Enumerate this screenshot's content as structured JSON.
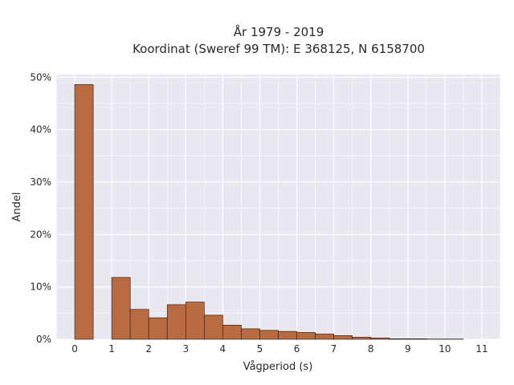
{
  "chart_data": {
    "type": "bar",
    "title": "År 1979 - 2019",
    "subtitle": "Koordinat (Sweref 99 TM): E 368125, N 6158700",
    "xlabel": "Vågperiod (s)",
    "ylabel": "Andel",
    "xlim": [
      -0.5,
      11.5
    ],
    "ylim": [
      0,
      50.5
    ],
    "x_ticks": [
      0,
      1,
      2,
      3,
      4,
      5,
      6,
      7,
      8,
      9,
      10,
      11
    ],
    "y_ticks": [
      0,
      10,
      20,
      30,
      40,
      50
    ],
    "y_tick_labels": [
      "0%",
      "10%",
      "20%",
      "30%",
      "40%",
      "50%"
    ],
    "bin_width": 0.5,
    "bins": [
      {
        "start": 0.0,
        "value": 48.6
      },
      {
        "start": 1.0,
        "value": 11.8
      },
      {
        "start": 1.5,
        "value": 5.7
      },
      {
        "start": 2.0,
        "value": 4.1
      },
      {
        "start": 2.5,
        "value": 6.6
      },
      {
        "start": 3.0,
        "value": 7.1
      },
      {
        "start": 3.5,
        "value": 4.6
      },
      {
        "start": 4.0,
        "value": 2.7
      },
      {
        "start": 4.5,
        "value": 2.0
      },
      {
        "start": 5.0,
        "value": 1.7
      },
      {
        "start": 5.5,
        "value": 1.5
      },
      {
        "start": 6.0,
        "value": 1.3
      },
      {
        "start": 6.5,
        "value": 1.0
      },
      {
        "start": 7.0,
        "value": 0.7
      },
      {
        "start": 7.5,
        "value": 0.4
      },
      {
        "start": 8.0,
        "value": 0.25
      },
      {
        "start": 8.5,
        "value": 0.1
      },
      {
        "start": 9.0,
        "value": 0.1
      },
      {
        "start": 9.5,
        "value": 0.05
      },
      {
        "start": 10.0,
        "value": 0.05
      }
    ],
    "grid": true,
    "colors": {
      "bar_fill": "#b86b40",
      "bar_stroke": "#3a2418",
      "plot_background": "#e8e8f0",
      "grid": "#ffffff"
    }
  }
}
